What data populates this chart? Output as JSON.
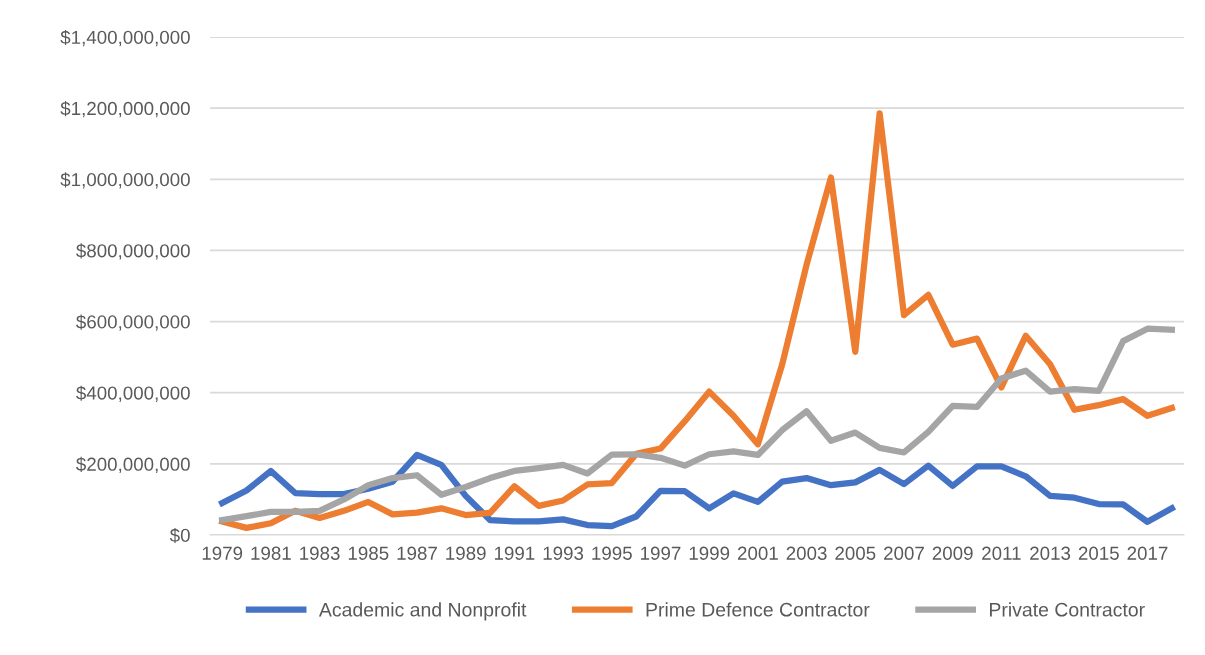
{
  "chart_data": {
    "type": "line",
    "categories": [
      "1979",
      null,
      "1981",
      null,
      "1983",
      null,
      "1985",
      null,
      "1987",
      null,
      "1989",
      null,
      "1991",
      null,
      "1993",
      null,
      "1995",
      null,
      "1997",
      null,
      "1999",
      null,
      "2001",
      null,
      "2003",
      null,
      "2005",
      null,
      "2007",
      null,
      "2009",
      null,
      "2011",
      null,
      "2013",
      null,
      "2015",
      null,
      "2017",
      null
    ],
    "series": [
      {
        "name": "Academic and Nonprofit",
        "color": "#4472c4",
        "values": [
          90000000,
          125000000,
          180000000,
          118000000,
          115000000,
          115000000,
          130000000,
          150000000,
          225000000,
          197000000,
          110000000,
          42000000,
          38000000,
          38000000,
          44000000,
          28000000,
          25000000,
          52000000,
          124000000,
          123000000,
          75000000,
          117000000,
          93000000,
          150000000,
          160000000,
          140000000,
          148000000,
          183000000,
          143000000,
          195000000,
          138000000,
          193000000,
          193000000,
          165000000,
          110000000,
          105000000,
          87000000,
          86000000,
          37000000,
          75000000
        ]
      },
      {
        "name": "Prime Defence Contractor",
        "color": "#ed7d31",
        "values": [
          38000000,
          20000000,
          33000000,
          68000000,
          48000000,
          68000000,
          93000000,
          58000000,
          63000000,
          75000000,
          56000000,
          62000000,
          137000000,
          82000000,
          97000000,
          142000000,
          146000000,
          228000000,
          243000000,
          320000000,
          403000000,
          335000000,
          255000000,
          480000000,
          760000000,
          1005000000,
          515000000,
          1185000000,
          618000000,
          675000000,
          535000000,
          552000000,
          415000000,
          560000000,
          480000000,
          352000000,
          365000000,
          382000000,
          335000000,
          357000000
        ]
      },
      {
        "name": "Private Contractor",
        "color": "#a5a5a5",
        "values": [
          42000000,
          53000000,
          65000000,
          65000000,
          68000000,
          100000000,
          140000000,
          160000000,
          168000000,
          113000000,
          135000000,
          160000000,
          180000000,
          188000000,
          197000000,
          173000000,
          226000000,
          227000000,
          217000000,
          195000000,
          227000000,
          235000000,
          225000000,
          295000000,
          348000000,
          265000000,
          288000000,
          245000000,
          232000000,
          290000000,
          363000000,
          360000000,
          440000000,
          462000000,
          403000000,
          410000000,
          405000000,
          545000000,
          580000000,
          577000000
        ]
      }
    ],
    "ylim": [
      0,
      1400000000
    ],
    "yticks": [
      {
        "value": 0,
        "label": "$0"
      },
      {
        "value": 200000000,
        "label": "$200,000,000"
      },
      {
        "value": 400000000,
        "label": "$400,000,000"
      },
      {
        "value": 600000000,
        "label": "$600,000,000"
      },
      {
        "value": 800000000,
        "label": "$800,000,000"
      },
      {
        "value": 1000000000,
        "label": "$1,000,000,000"
      },
      {
        "value": 1200000000,
        "label": "$1,200,000,000"
      },
      {
        "value": 1400000000,
        "label": "$1,400,000,000"
      }
    ],
    "grid": "y",
    "legend": "bottom",
    "marker": "none",
    "line_style": "solid"
  }
}
